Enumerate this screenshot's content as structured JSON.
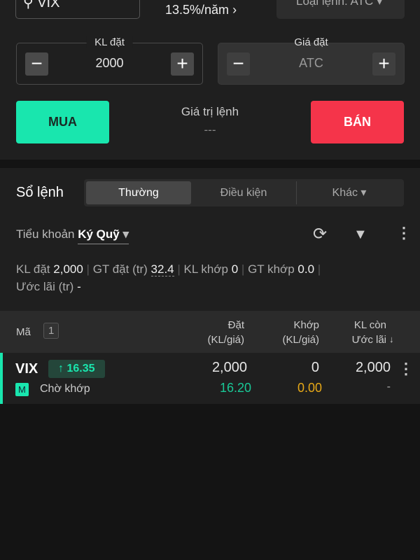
{
  "order_form": {
    "symbol": "VIX",
    "rate": "13.5%/năm",
    "rate_chevron": "›",
    "order_type": "Loại lệnh:  ATC ▾",
    "qty": {
      "label": "KL đặt",
      "value": "2000"
    },
    "price": {
      "label": "Giá đặt",
      "value": "ATC"
    },
    "buy_label": "MUA",
    "sell_label": "BÁN",
    "order_value_label": "Giá trị lệnh",
    "order_value": "---"
  },
  "orderbook": {
    "title": "Sổ lệnh",
    "tabs": [
      {
        "label": "Thường"
      },
      {
        "label": "Điều kiện"
      },
      {
        "label": "Khác ▾"
      }
    ],
    "sub_account_label": "Tiểu khoản",
    "sub_account": "Ký Quỹ",
    "summary": {
      "kl_dat_label": "KL đặt",
      "kl_dat": "2,000",
      "gt_dat_label": "GT đặt (tr)",
      "gt_dat": "32.4",
      "kl_khop_label": "KL khớp",
      "kl_khop": "0",
      "gt_khop_label": "GT khớp",
      "gt_khop": "0.0",
      "uoc_lai_label": "Ước lãi (tr)",
      "uoc_lai": "-"
    },
    "columns": {
      "ma": "Mã",
      "count": "1",
      "dat1": "Đặt",
      "dat2": "(KL/giá)",
      "khop1": "Khớp",
      "khop2": "(KL/giá)",
      "con1": "KL còn",
      "con2": "Ước lãi"
    },
    "rows": [
      {
        "symbol": "VIX",
        "price_change": "16.35",
        "badge": "M",
        "status": "Chờ khớp",
        "dat_qty": "2,000",
        "dat_price": "16.20",
        "khop_qty": "0",
        "khop_price": "0.00",
        "remaining": "2,000",
        "profit": "-"
      }
    ]
  },
  "colors": {
    "buy": "#19e6ae",
    "sell": "#f5344a",
    "up": "#19e6ae",
    "match_price": "#e6a817"
  }
}
